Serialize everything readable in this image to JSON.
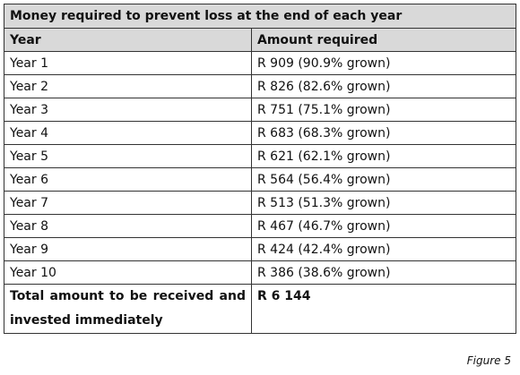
{
  "table": {
    "title": "Money required to prevent loss at the end of each year",
    "header": [
      "Year",
      "Amount required"
    ],
    "rows": [
      [
        "Year 1",
        "R 909 (90.9% grown)"
      ],
      [
        "Year 2",
        "R 826 (82.6% grown)"
      ],
      [
        "Year 3",
        "R 751 (75.1% grown)"
      ],
      [
        "Year 4",
        "R 683 (68.3% grown)"
      ],
      [
        "Year 5",
        "R 621 (62.1% grown)"
      ],
      [
        "Year 6",
        "R 564 (56.4% grown)"
      ],
      [
        "Year 7",
        "R 513 (51.3% grown)"
      ],
      [
        "Year 8",
        "R 467 (46.7% grown)"
      ],
      [
        "Year 9",
        "R 424 (42.4% grown)"
      ],
      [
        "Year 10",
        "R 386 (38.6% grown)"
      ]
    ],
    "total": [
      "Total amount to be received and invested immediately",
      "R 6 144"
    ]
  },
  "caption": "Figure 5"
}
